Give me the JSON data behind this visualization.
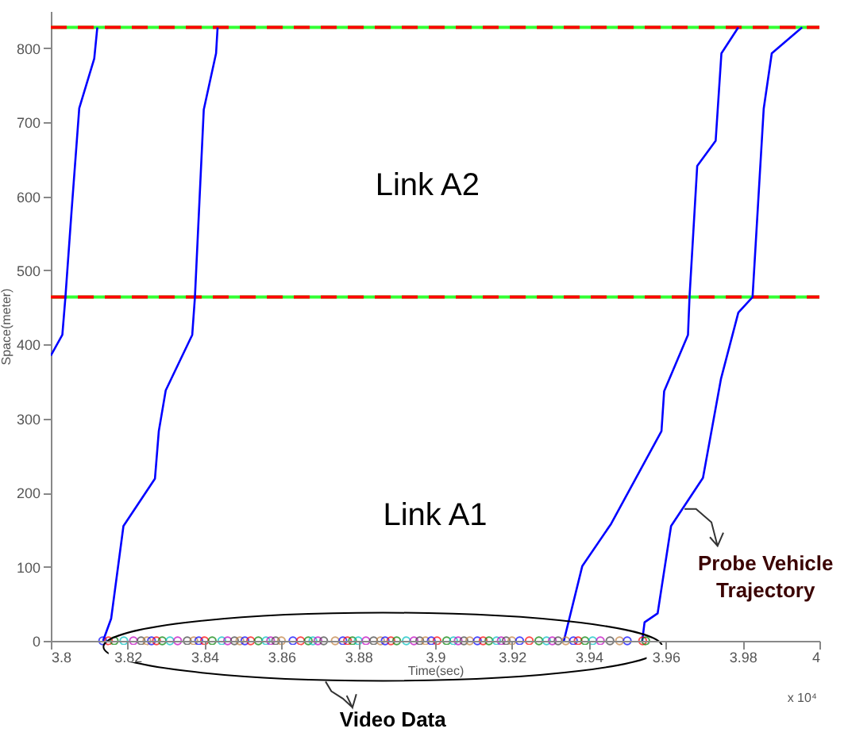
{
  "chart_data": {
    "type": "line",
    "xlabel": "Time(sec)",
    "ylabel": "Space(meter)",
    "xlim": [
      3.8,
      4
    ],
    "ylim": [
      0,
      850
    ],
    "xticks": [
      3.8,
      3.82,
      3.84,
      3.86,
      3.88,
      3.9,
      3.92,
      3.94,
      3.96,
      3.98,
      4
    ],
    "yticks": [
      0,
      100,
      200,
      300,
      400,
      500,
      600,
      700,
      800
    ],
    "grid": false,
    "line_style": "solid",
    "series": [
      {
        "color": "#0000ff",
        "x": [
          3.8,
          3.803,
          3.8038,
          3.8054,
          3.8074,
          3.8113,
          3.8121
        ],
        "values": [
          385,
          413,
          464,
          580,
          719,
          786,
          828
        ]
      },
      {
        "color": "#0000ff",
        "x": [
          3.8136,
          3.8157,
          3.8189,
          3.8271,
          3.8281,
          3.8299,
          3.8368,
          3.8375,
          3.8398,
          3.843,
          3.8434
        ],
        "values": [
          0,
          30,
          155,
          219,
          283,
          338,
          413,
          464,
          717,
          793,
          828
        ]
      },
      {
        "color": "#0000ff",
        "x": [
          3.9335,
          3.9383,
          3.9458,
          3.9589,
          3.9596,
          3.961,
          3.9658,
          3.9662,
          3.9682,
          3.973,
          3.9745,
          3.9789
        ],
        "values": [
          0,
          101,
          158,
          283,
          337,
          354,
          413,
          464,
          641,
          675,
          793,
          828
        ]
      },
      {
        "color": "#0000ff",
        "x": [
          3.9539,
          3.9545,
          3.9579,
          3.9614,
          3.9697,
          3.9744,
          3.9789,
          3.9826,
          3.9855,
          3.9876,
          3.9955
        ],
        "values": [
          0,
          25,
          37,
          155,
          220,
          354,
          443,
          464,
          718,
          793,
          828
        ]
      },
      {
        "type": "scatter",
        "marker": "circle",
        "x": [
          3.8135,
          3.815,
          3.8165,
          3.819,
          3.8215,
          3.8235,
          3.825,
          3.8262,
          3.8275,
          3.829,
          3.831,
          3.833,
          3.8355,
          3.8372,
          3.8385,
          3.84,
          3.842,
          3.8445,
          3.846,
          3.8478,
          3.8492,
          3.8505,
          3.852,
          3.854,
          3.856,
          3.8572,
          3.8585,
          3.86,
          3.863,
          3.865,
          3.867,
          3.8682,
          3.8695,
          3.871,
          3.874,
          3.876,
          3.8772,
          3.8785,
          3.88,
          3.882,
          3.884,
          3.8858,
          3.887,
          3.8885,
          3.89,
          3.8925,
          3.8945,
          3.896,
          3.8975,
          3.899,
          3.9005,
          3.903,
          3.9048,
          3.906,
          3.9075,
          3.909,
          3.911,
          3.9125,
          3.914,
          3.916,
          3.9172,
          3.9185,
          3.92,
          3.922,
          3.9245,
          3.927,
          3.929,
          3.9305,
          3.932,
          3.934,
          3.936,
          3.9372,
          3.939,
          3.941,
          3.943,
          3.9455,
          3.948,
          3.95,
          3.954,
          3.9548
        ],
        "values": [
          0,
          0,
          0,
          0,
          0,
          0,
          0,
          0,
          0,
          0,
          0,
          0,
          0,
          0,
          0,
          0,
          0,
          0,
          0,
          0,
          0,
          0,
          0,
          0,
          0,
          0,
          0,
          0,
          0,
          0,
          0,
          0,
          0,
          0,
          0,
          0,
          0,
          0,
          0,
          0,
          0,
          0,
          0,
          0,
          0,
          0,
          0,
          0,
          0,
          0,
          0,
          0,
          0,
          0,
          0,
          0,
          0,
          0,
          0,
          0,
          0,
          0,
          0,
          0,
          0,
          0,
          0,
          0,
          0,
          0,
          0,
          0,
          0,
          0,
          0,
          0,
          0,
          0,
          0,
          0
        ],
        "colors": [
          "#0000ff",
          "#ff0000",
          "#008000",
          "#00bfbf",
          "#bf00bf",
          "#404040",
          "#c08040",
          "#0000ff",
          "#ff0000",
          "#008000",
          "#00bfbf",
          "#bf00bf",
          "#404040",
          "#c08040",
          "#0000ff",
          "#ff0000",
          "#008000",
          "#00bfbf",
          "#bf00bf",
          "#404040",
          "#c08040",
          "#0000ff",
          "#ff0000",
          "#008000",
          "#00bfbf",
          "#bf00bf",
          "#404040",
          "#c08040",
          "#0000ff",
          "#ff0000",
          "#008000",
          "#00bfbf",
          "#bf00bf",
          "#404040",
          "#c08040",
          "#0000ff",
          "#ff0000",
          "#008000",
          "#00bfbf",
          "#bf00bf",
          "#404040",
          "#c08040",
          "#0000ff",
          "#ff0000",
          "#008000",
          "#00bfbf",
          "#bf00bf",
          "#404040",
          "#c08040",
          "#0000ff",
          "#ff0000",
          "#008000",
          "#00bfbf",
          "#bf00bf",
          "#404040",
          "#c08040",
          "#0000ff",
          "#ff0000",
          "#008000",
          "#00bfbf",
          "#bf00bf",
          "#404040",
          "#c08040",
          "#0000ff",
          "#ff0000",
          "#008000",
          "#00bfbf",
          "#bf00bf",
          "#404040",
          "#c08040",
          "#0000ff",
          "#ff0000",
          "#008000",
          "#00bfbf",
          "#bf00bf",
          "#404040",
          "#c08040",
          "#0000ff",
          "#ff0000",
          "#008000"
        ]
      }
    ],
    "ref_lines": [
      {
        "axis": "y",
        "value": 464,
        "color": "#33ff33",
        "line_style": "solid"
      },
      {
        "axis": "y",
        "value": 464,
        "color": "#ff0000",
        "line_style": "dashed"
      },
      {
        "axis": "y",
        "value": 828,
        "color": "#33ff33",
        "line_style": "solid"
      },
      {
        "axis": "y",
        "value": 828,
        "color": "#ff0000",
        "line_style": "dashed"
      }
    ],
    "annotations": [
      "Link A2",
      "Link A1",
      {
        "text": "Probe Vehicle Trajectory",
        "x": 3.9649,
        "y": 178
      },
      "Video Data",
      "x 10⁴"
    ]
  }
}
